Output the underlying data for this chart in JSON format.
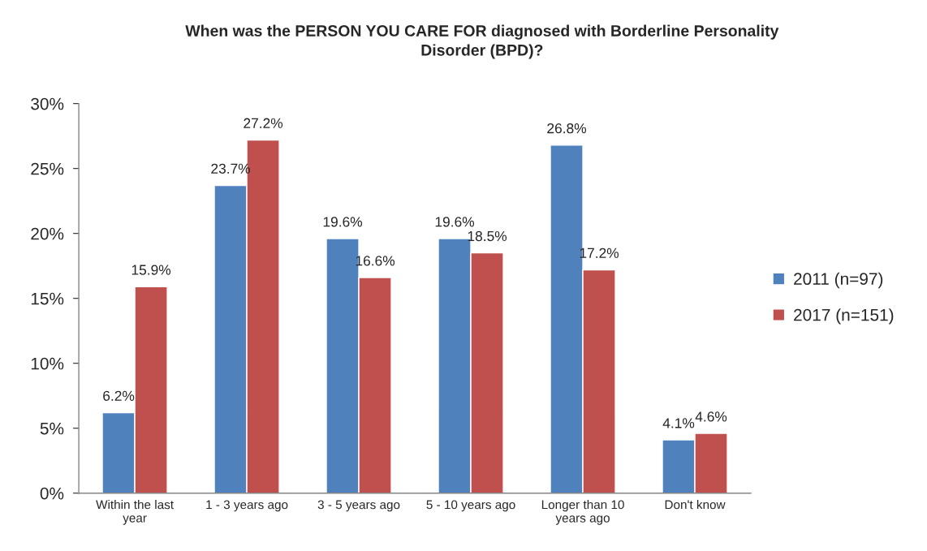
{
  "chart_data": {
    "type": "bar",
    "title": "When was the PERSON YOU CARE FOR diagnosed with Borderline Personality\nDisorder (BPD)?",
    "categories": [
      "Within the last\nyear",
      "1 - 3 years ago",
      "3 - 5 years ago",
      "5 - 10 years ago",
      "Longer than 10\nyears ago",
      "Don't know"
    ],
    "series": [
      {
        "name": "2011 (n=97)",
        "color": "#4f81bd",
        "values": [
          6.2,
          23.7,
          19.6,
          19.6,
          26.8,
          4.1
        ],
        "value_labels": [
          "6.2%",
          "23.7%",
          "19.6%",
          "19.6%",
          "26.8%",
          "4.1%"
        ]
      },
      {
        "name": "2017 (n=151)",
        "color": "#c0504d",
        "values": [
          15.9,
          27.2,
          16.6,
          18.5,
          17.2,
          4.6
        ],
        "value_labels": [
          "15.9%",
          "27.2%",
          "16.6%",
          "18.5%",
          "17.2%",
          "4.6%"
        ]
      }
    ],
    "ylim": [
      0,
      30
    ],
    "yticks": [
      {
        "value": 0,
        "label": "0%"
      },
      {
        "value": 5,
        "label": "5%"
      },
      {
        "value": 10,
        "label": "10%"
      },
      {
        "value": 15,
        "label": "15%"
      },
      {
        "value": 20,
        "label": "20%"
      },
      {
        "value": 25,
        "label": "25%"
      },
      {
        "value": 30,
        "label": "30%"
      }
    ],
    "grid": false,
    "legend": "right"
  }
}
